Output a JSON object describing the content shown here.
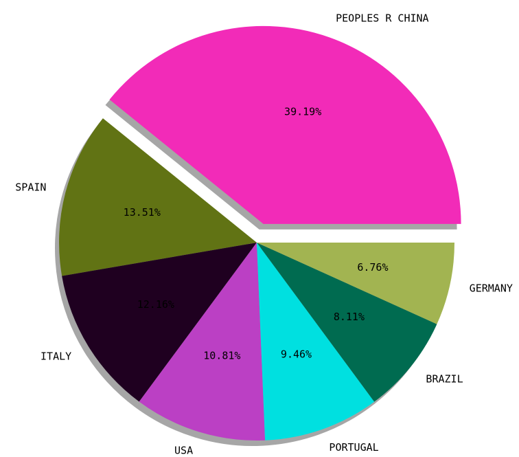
{
  "chart_data": {
    "type": "pie",
    "categories": [
      "PEOPLES R CHINA",
      "SPAIN",
      "ITALY",
      "USA",
      "PORTUGAL",
      "BRAZIL",
      "GERMANY"
    ],
    "values": [
      39.19,
      13.51,
      12.16,
      10.81,
      9.46,
      8.11,
      6.76
    ],
    "value_labels": [
      "39.19%",
      "13.51%",
      "12.16%",
      "10.81%",
      "9.46%",
      "8.11%",
      "6.76%"
    ],
    "colors": [
      "#f22bb8",
      "#617314",
      "#1f0020",
      "#bb40c4",
      "#00e0e0",
      "#006b50",
      "#a2b451"
    ],
    "explode": [
      0.1,
      0,
      0,
      0,
      0,
      0,
      0
    ],
    "shadow": true
  }
}
